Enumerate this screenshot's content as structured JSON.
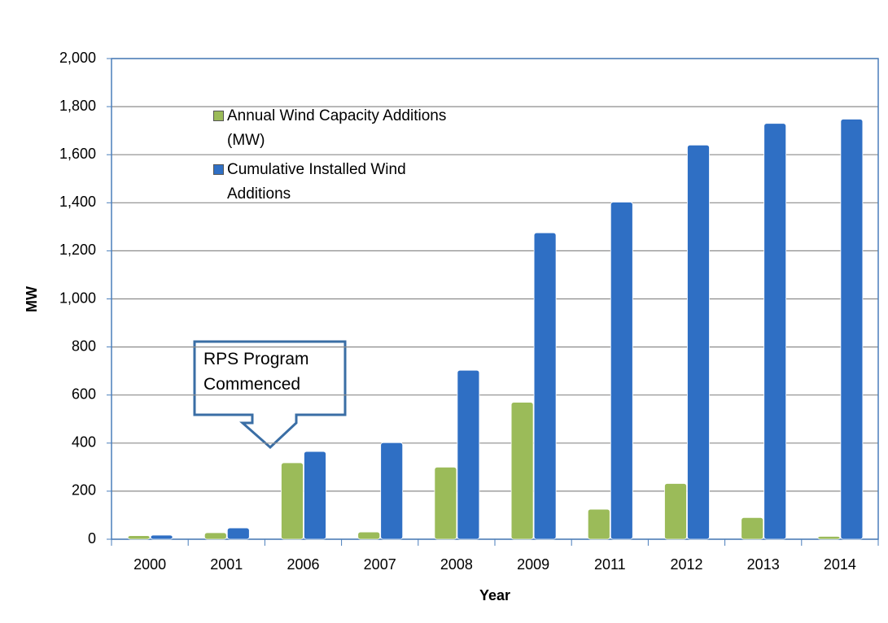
{
  "chart_data": {
    "type": "bar",
    "categories": [
      "2000",
      "2001",
      "2006",
      "2007",
      "2008",
      "2009",
      "2011",
      "2012",
      "2013",
      "2014"
    ],
    "series": [
      {
        "name": "Annual Wind Capacity Additions (MW)",
        "color": "#9bbb59",
        "values": [
          15,
          27,
          318,
          30,
          300,
          570,
          125,
          232,
          90,
          12
        ]
      },
      {
        "name": "Cumulative Installed Wind Additions",
        "color": "#2f6fc4",
        "values": [
          17,
          47,
          365,
          402,
          703,
          1275,
          1403,
          1640,
          1730,
          1748
        ]
      }
    ],
    "ylim": [
      0,
      2000
    ],
    "yticks": [
      0,
      200,
      400,
      600,
      800,
      {
        "value": 1000,
        "label": "1,000"
      },
      {
        "value": 1200,
        "label": "1,200"
      },
      {
        "value": 1400,
        "label": "1,400"
      },
      {
        "value": 1600,
        "label": "1,600"
      },
      {
        "value": 1800,
        "label": "1,800"
      },
      {
        "value": 2000,
        "label": "2,000"
      }
    ],
    "xlabel": "Year",
    "ylabel": "MW",
    "grid": true,
    "annotation": "RPS Program Commenced"
  }
}
